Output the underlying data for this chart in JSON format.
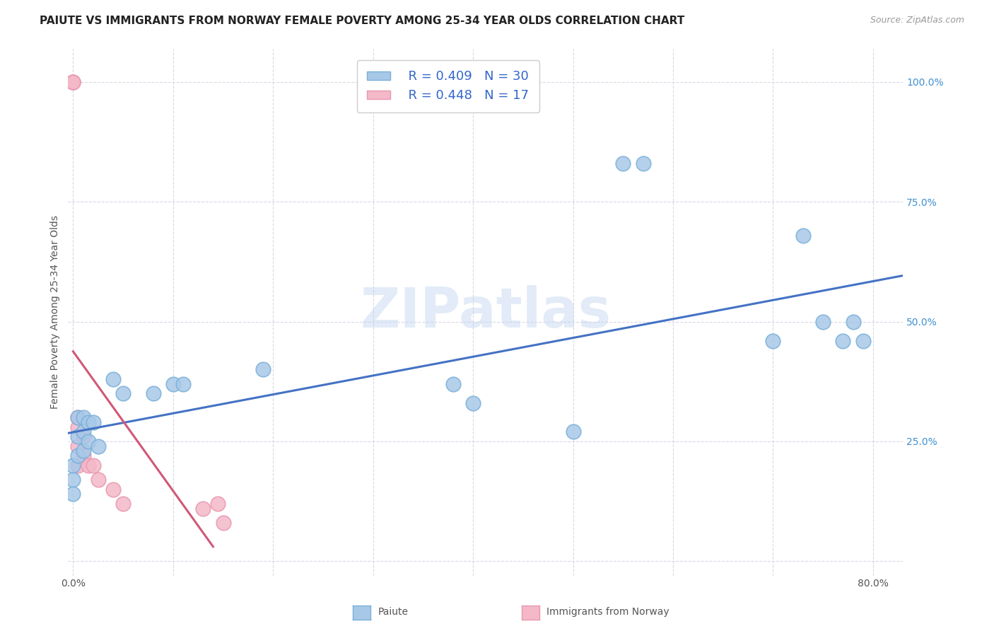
{
  "title": "PAIUTE VS IMMIGRANTS FROM NORWAY FEMALE POVERTY AMONG 25-34 YEAR OLDS CORRELATION CHART",
  "source": "Source: ZipAtlas.com",
  "ylabel": "Female Poverty Among 25-34 Year Olds",
  "xmin": -0.005,
  "xmax": 0.83,
  "ymin": -0.03,
  "ymax": 1.07,
  "xticks": [
    0.0,
    0.1,
    0.2,
    0.3,
    0.4,
    0.5,
    0.6,
    0.7,
    0.8
  ],
  "yticks": [
    0.0,
    0.25,
    0.5,
    0.75,
    1.0
  ],
  "paiute_color": "#a8c8e8",
  "norway_color": "#f4b8c8",
  "line_blue": "#4472c4",
  "line_pink": "#d05878",
  "R_paiute": 0.409,
  "N_paiute": 30,
  "R_norway": 0.448,
  "N_norway": 17,
  "paiute_x": [
    0.0,
    0.0,
    0.0,
    0.005,
    0.005,
    0.005,
    0.01,
    0.01,
    0.01,
    0.015,
    0.015,
    0.02,
    0.025,
    0.04,
    0.05,
    0.08,
    0.1,
    0.11,
    0.19,
    0.38,
    0.4,
    0.5,
    0.55,
    0.57,
    0.7,
    0.73,
    0.75,
    0.77,
    0.78,
    0.79
  ],
  "paiute_y": [
    0.2,
    0.17,
    0.14,
    0.3,
    0.26,
    0.22,
    0.3,
    0.27,
    0.23,
    0.29,
    0.25,
    0.29,
    0.24,
    0.38,
    0.35,
    0.35,
    0.37,
    0.37,
    0.4,
    0.37,
    0.33,
    0.27,
    0.83,
    0.83,
    0.46,
    0.68,
    0.5,
    0.46,
    0.5,
    0.46
  ],
  "norway_x": [
    0.0,
    0.0,
    0.0,
    0.005,
    0.005,
    0.005,
    0.005,
    0.01,
    0.01,
    0.015,
    0.02,
    0.025,
    0.04,
    0.05,
    0.13,
    0.145,
    0.15
  ],
  "norway_y": [
    1.0,
    1.0,
    1.0,
    0.3,
    0.28,
    0.24,
    0.2,
    0.26,
    0.22,
    0.2,
    0.2,
    0.17,
    0.15,
    0.12,
    0.11,
    0.12,
    0.08
  ],
  "watermark": "ZIPatlas",
  "background_color": "#ffffff",
  "grid_color": "#d8d8e8",
  "title_fontsize": 11,
  "label_fontsize": 10,
  "tick_fontsize": 10
}
